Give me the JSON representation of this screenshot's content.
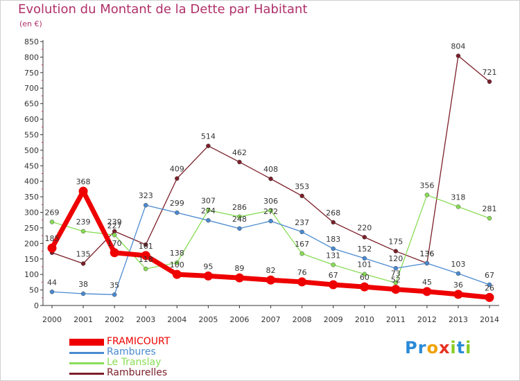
{
  "chart_data": {
    "type": "line",
    "title": "Evolution du Montant de la Dette par Habitant",
    "unit_label": "(en €)",
    "x": [
      "2000",
      "2001",
      "2002",
      "2003",
      "2004",
      "2005",
      "2006",
      "2007",
      "2008",
      "2009",
      "2010",
      "2011",
      "2012",
      "2013",
      "2014"
    ],
    "y_ticks": [
      "0",
      "50",
      "100",
      "150",
      "200",
      "250",
      "300",
      "350",
      "400",
      "450",
      "500",
      "550",
      "600",
      "650",
      "700",
      "750",
      "800",
      "850"
    ],
    "ylim": [
      0,
      850
    ],
    "grid": false,
    "legend_position": "bottom-left",
    "series": [
      {
        "name": "FRAMICOURT",
        "color": "#ee0000",
        "style": "thick",
        "values": [
          185,
          368,
          170,
          161,
          100,
          95,
          89,
          82,
          76,
          67,
          60,
          52,
          45,
          36,
          26
        ],
        "labels": [
          "185",
          "368",
          "170",
          "161",
          "100",
          "95",
          "89",
          "82",
          "76",
          "67",
          "60",
          "52",
          "45",
          "36",
          "26"
        ]
      },
      {
        "name": "Rambures",
        "color": "#4a8ad0",
        "style": "thin",
        "values": [
          44,
          38,
          35,
          323,
          299,
          274,
          248,
          272,
          237,
          183,
          152,
          120,
          136,
          103,
          67
        ],
        "labels": [
          "44",
          "38",
          "35",
          "323",
          "299",
          "274",
          "248",
          "272",
          "237",
          "183",
          "152",
          "120",
          "136",
          "103",
          "67"
        ]
      },
      {
        "name": "Le Translay",
        "color": "#88dd55",
        "style": "thin",
        "values": [
          269,
          239,
          227,
          118,
          138,
          307,
          286,
          306,
          167,
          131,
          101,
          73,
          356,
          318,
          281
        ],
        "labels": [
          "269",
          "239",
          "227",
          "118",
          "138",
          "307",
          "286",
          "306",
          "167",
          "131",
          "101",
          "73",
          "356",
          "318",
          "281"
        ]
      },
      {
        "name": "Ramburelles",
        "color": "#7a1e28",
        "style": "thin",
        "values": [
          170,
          135,
          239,
          196,
          409,
          514,
          462,
          408,
          353,
          268,
          220,
          175,
          136,
          804,
          721
        ],
        "labels": [
          "",
          "135",
          "239",
          "",
          "409",
          "514",
          "462",
          "408",
          "353",
          "268",
          "220",
          "175",
          "136",
          "804",
          "721"
        ]
      }
    ]
  },
  "logo": {
    "letters": [
      "P",
      "r",
      "o",
      "x",
      "i",
      "t",
      "i"
    ],
    "colors": [
      "#2a8ad8",
      "#2a8ad8",
      "#f0a000",
      "#e83020",
      "#88cc22",
      "#2a8ad8",
      "#88cc22"
    ]
  }
}
